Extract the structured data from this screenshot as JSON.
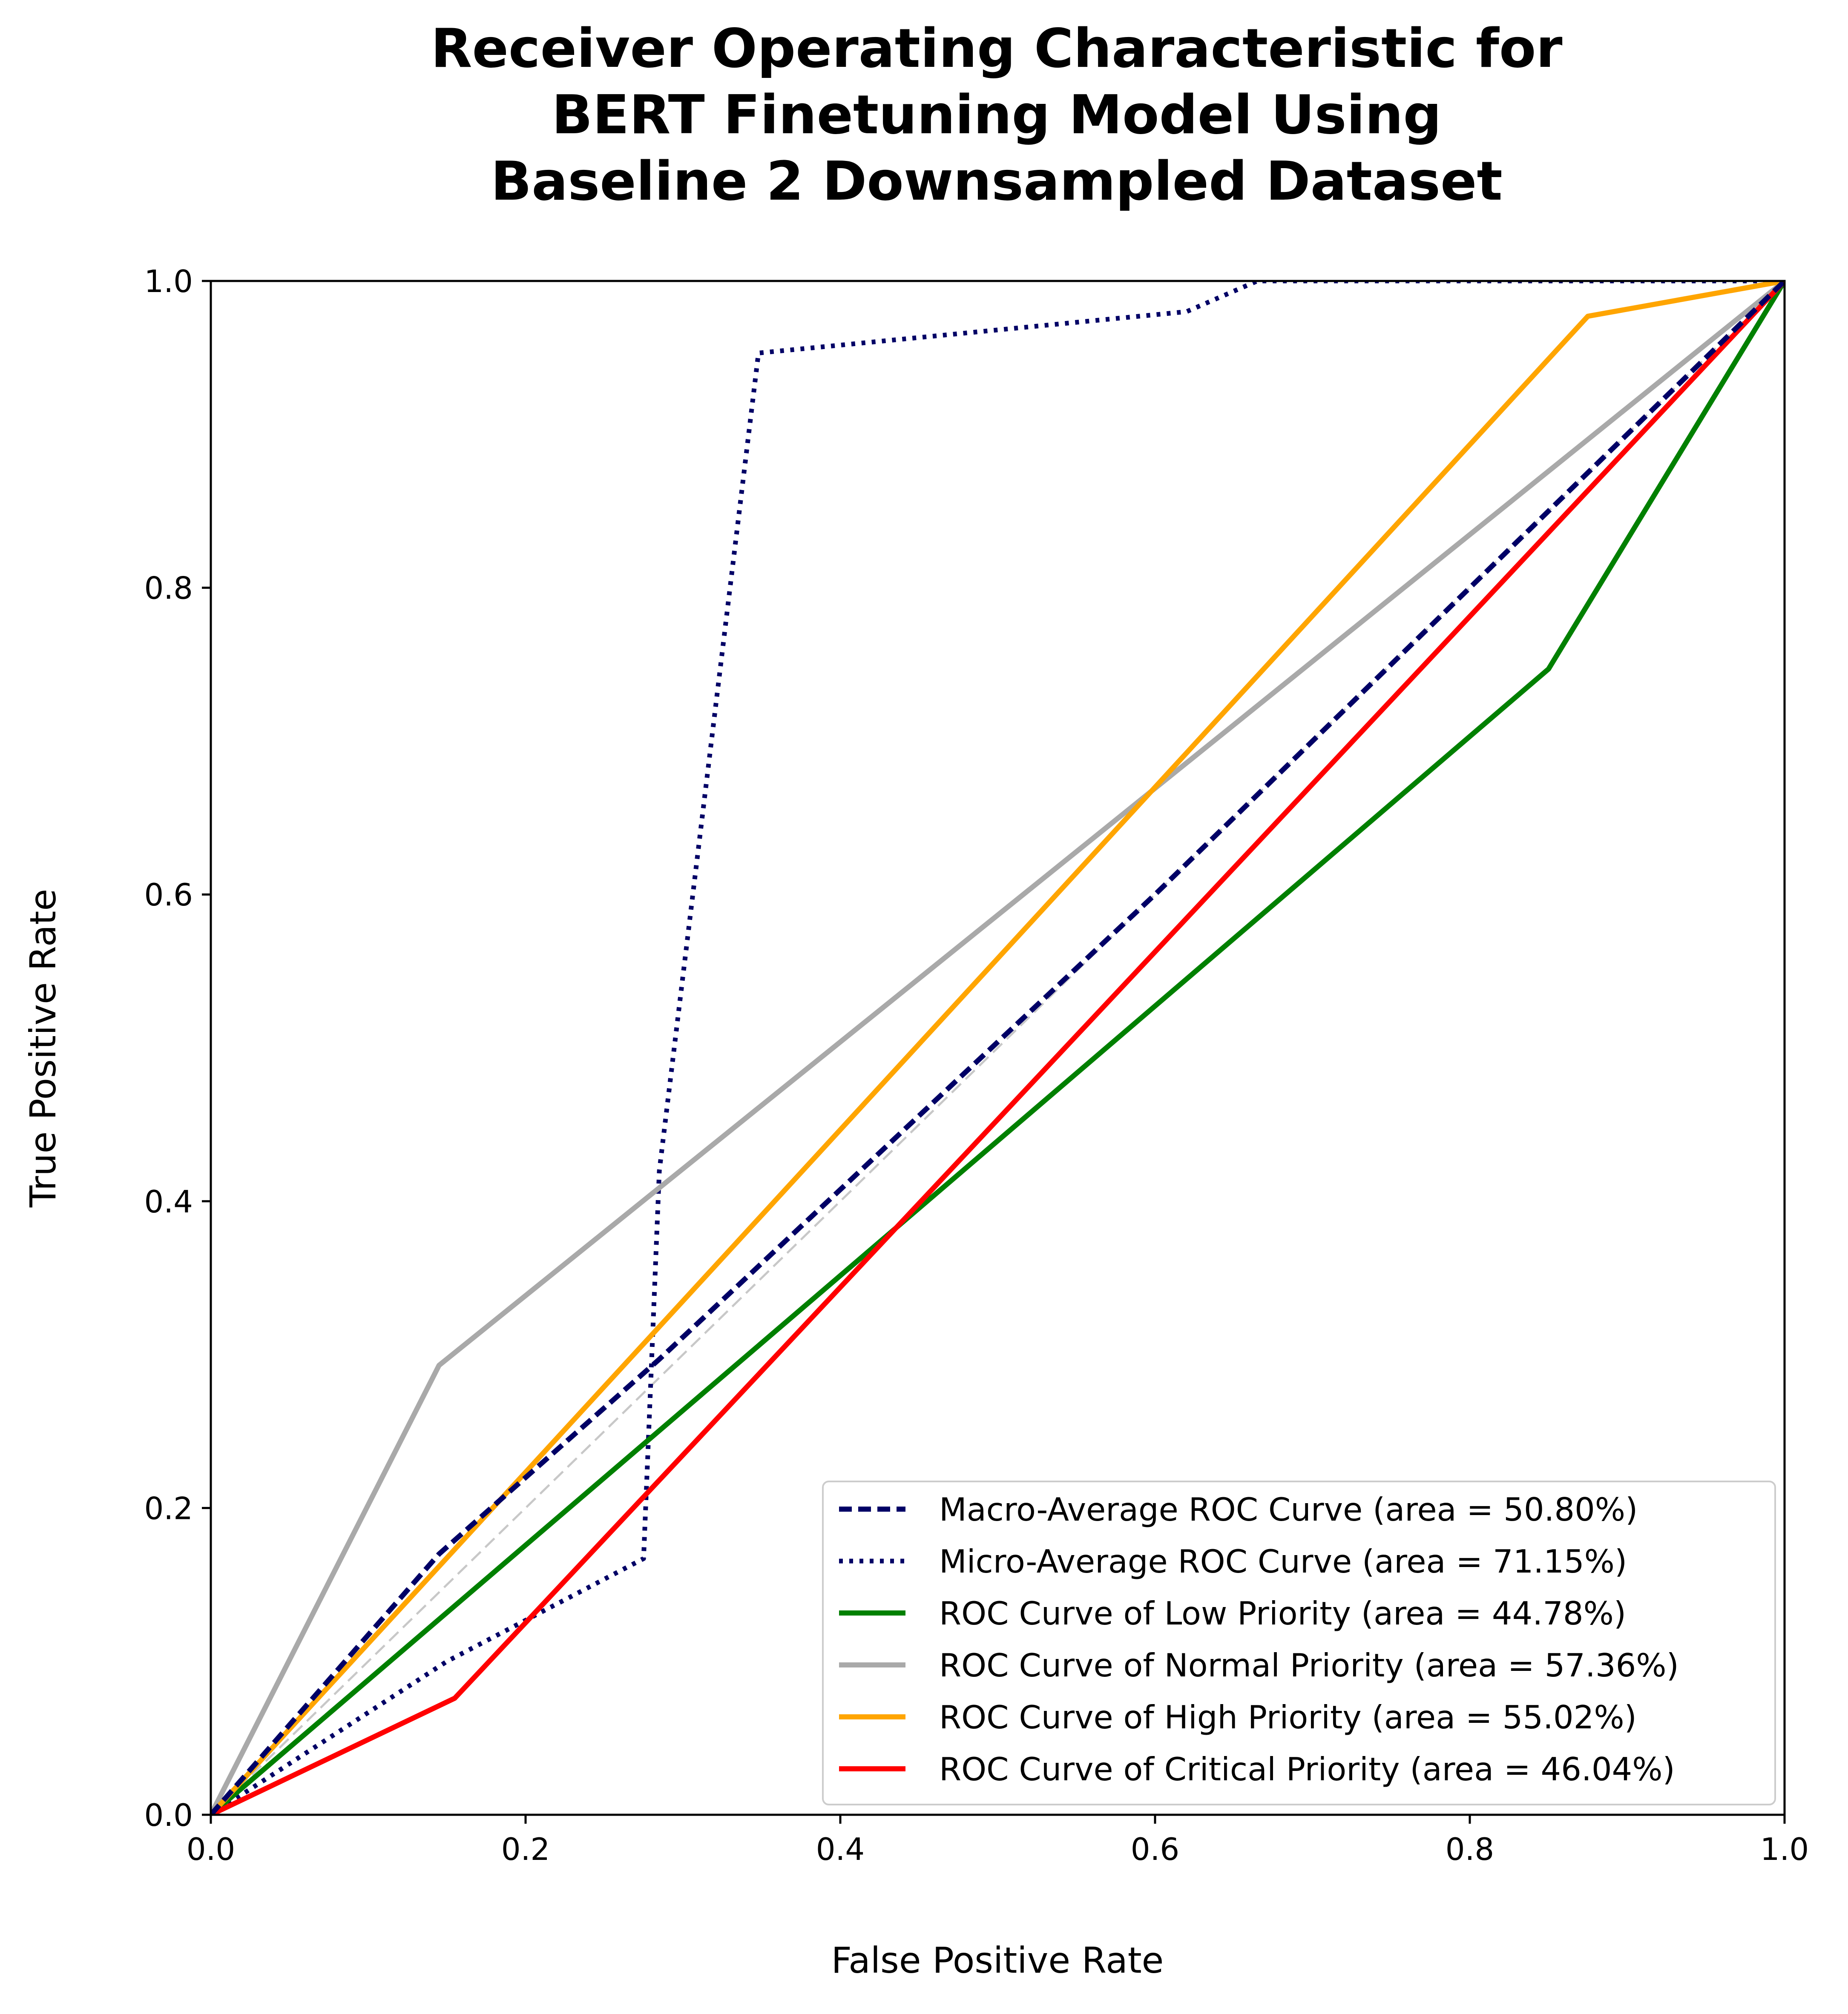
{
  "chart_data": {
    "type": "line",
    "title": [
      "Receiver Operating Characteristic for",
      "BERT Finetuning Model Using",
      "Baseline 2 Downsampled Dataset"
    ],
    "xlabel": "False Positive Rate",
    "ylabel": "True Positive Rate",
    "xlim": [
      0.0,
      1.0
    ],
    "ylim": [
      0.0,
      1.0
    ],
    "xticks": [
      "0.0",
      "0.2",
      "0.4",
      "0.6",
      "0.8",
      "1.0"
    ],
    "yticks": [
      "0.0",
      "0.2",
      "0.4",
      "0.6",
      "0.8",
      "1.0"
    ],
    "grid": false,
    "legend_position": "lower-right",
    "reference_line": {
      "x": [
        0,
        1
      ],
      "y": [
        0,
        1
      ],
      "color": "#c8c8c8",
      "style": "dashed"
    },
    "series": [
      {
        "name": "Macro-Average ROC Curve (area = 50.80%)",
        "color": "#000066",
        "style": "dashed",
        "x": [
          0.0,
          0.145,
          0.285,
          0.6,
          0.85,
          0.875,
          1.0
        ],
        "y": [
          0.0,
          0.17,
          0.297,
          0.6,
          0.85,
          0.875,
          1.0
        ]
      },
      {
        "name": "Micro-Average ROC Curve (area = 71.15%)",
        "color": "#000066",
        "style": "dotted",
        "x": [
          0.0,
          0.15,
          0.275,
          0.285,
          0.348,
          0.62,
          0.665,
          1.0
        ],
        "y": [
          0.0,
          0.1,
          0.167,
          0.42,
          0.953,
          0.98,
          1.0,
          1.0
        ]
      },
      {
        "name": "ROC Curve of Low Priority (area = 44.78%)",
        "color": "#008000",
        "style": "solid",
        "x": [
          0.0,
          0.85,
          1.0
        ],
        "y": [
          0.0,
          0.747,
          1.0
        ]
      },
      {
        "name": "ROC Curve of Normal Priority (area = 57.36%)",
        "color": "#a9a9a9",
        "style": "solid",
        "x": [
          0.0,
          0.145,
          1.0
        ],
        "y": [
          0.0,
          0.293,
          1.0
        ]
      },
      {
        "name": "ROC Curve of High Priority (area = 55.02%)",
        "color": "#ffa500",
        "style": "solid",
        "x": [
          0.0,
          0.875,
          1.0
        ],
        "y": [
          0.0,
          0.977,
          1.0
        ]
      },
      {
        "name": "ROC Curve of Critical Priority (area = 46.04%)",
        "color": "#ff0000",
        "style": "solid",
        "x": [
          0.0,
          0.155,
          1.0
        ],
        "y": [
          0.0,
          0.076,
          1.0
        ]
      }
    ]
  }
}
